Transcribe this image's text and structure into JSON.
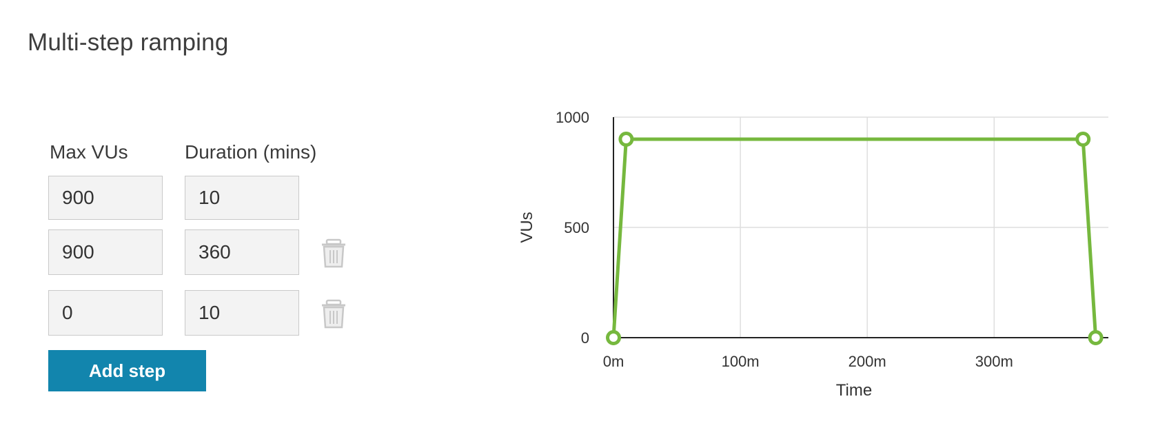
{
  "title": "Multi-step ramping",
  "columns": {
    "max_vus": "Max VUs",
    "duration": "Duration (mins)"
  },
  "steps": [
    {
      "max_vus": "900",
      "duration": "10",
      "deletable": false
    },
    {
      "max_vus": "900",
      "duration": "360",
      "deletable": true
    },
    {
      "max_vus": "0",
      "duration": "10",
      "deletable": true
    }
  ],
  "add_step_label": "Add step",
  "colors": {
    "series": "#76b83e",
    "button": "#1285ad"
  },
  "chart_data": {
    "type": "line",
    "xlabel": "Time",
    "ylabel": "VUs",
    "x_ticks": [
      "0m",
      "100m",
      "200m",
      "300m"
    ],
    "x_tick_values": [
      0,
      100,
      200,
      300
    ],
    "y_ticks": [
      "1000",
      "500",
      "0"
    ],
    "y_tick_values": [
      1000,
      500,
      0
    ],
    "xlim": [
      0,
      390
    ],
    "ylim": [
      0,
      1000
    ],
    "grid": true,
    "series": [
      {
        "x": [
          0,
          10,
          370,
          380
        ],
        "y": [
          0,
          900,
          900,
          0
        ]
      }
    ]
  }
}
